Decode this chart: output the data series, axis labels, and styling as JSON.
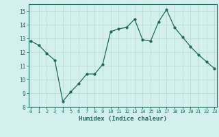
{
  "x": [
    0,
    1,
    2,
    3,
    4,
    5,
    6,
    7,
    8,
    9,
    10,
    11,
    12,
    13,
    14,
    15,
    16,
    17,
    18,
    19,
    20,
    21,
    22,
    23
  ],
  "y": [
    12.8,
    12.5,
    11.9,
    11.4,
    8.4,
    9.1,
    9.7,
    10.4,
    10.4,
    11.1,
    13.5,
    13.7,
    13.8,
    14.4,
    12.9,
    12.8,
    14.2,
    15.1,
    13.8,
    13.1,
    12.4,
    11.8,
    11.3,
    10.8
  ],
  "xlabel": "Humidex (Indice chaleur)",
  "ylim": [
    8,
    15.5
  ],
  "xlim": [
    -0.3,
    23.3
  ],
  "yticks": [
    8,
    9,
    10,
    11,
    12,
    13,
    14,
    15
  ],
  "xticks": [
    0,
    1,
    2,
    3,
    4,
    5,
    6,
    7,
    8,
    9,
    10,
    11,
    12,
    13,
    14,
    15,
    16,
    17,
    18,
    19,
    20,
    21,
    22,
    23
  ],
  "line_color": "#1a6b5a",
  "marker_color": "#1a6b5a",
  "bg_color": "#d4f0ee",
  "grid_color": "#b8d8d4",
  "axis_color": "#1a6b5a",
  "label_color": "#1a6b5a"
}
